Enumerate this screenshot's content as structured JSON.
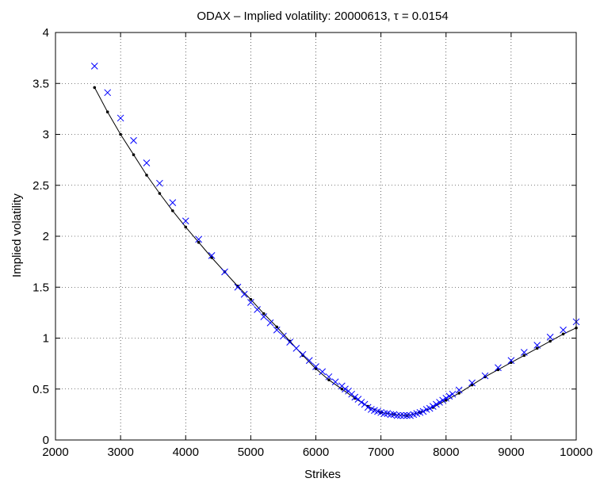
{
  "chart_data": {
    "type": "scatter",
    "title": "ODAX – Implied volatility: 20000613,  τ = 0.0154",
    "xlabel": "Strikes",
    "ylabel": "Implied volatility",
    "xlim": [
      2000,
      10000
    ],
    "ylim": [
      0,
      4
    ],
    "grid": true,
    "xticks": [
      "2000",
      "3000",
      "4000",
      "5000",
      "6000",
      "7000",
      "8000",
      "9000",
      "10000"
    ],
    "yticks": [
      "0",
      "0.5",
      "1",
      "1.5",
      "2",
      "2.5",
      "3",
      "3.5",
      "4"
    ],
    "series": [
      {
        "marker": "x",
        "color": "#0000ff",
        "x": [
          2600,
          2800,
          3000,
          3200,
          3400,
          3600,
          3800,
          4000,
          4200,
          4400,
          4600,
          4800,
          4900,
          5000,
          5100,
          5200,
          5300,
          5400,
          5500,
          5600,
          5700,
          5800,
          5900,
          6000,
          6100,
          6200,
          6300,
          6400,
          6450,
          6500,
          6550,
          6600,
          6650,
          6700,
          6750,
          6800,
          6850,
          6900,
          6950,
          7000,
          7050,
          7100,
          7150,
          7200,
          7250,
          7300,
          7350,
          7400,
          7450,
          7500,
          7550,
          7600,
          7650,
          7700,
          7750,
          7800,
          7850,
          7900,
          7950,
          8000,
          8050,
          8100,
          8200,
          8400,
          8600,
          8800,
          9000,
          9200,
          9400,
          9600,
          9800,
          10000
        ],
        "y": [
          3.67,
          3.41,
          3.16,
          2.94,
          2.72,
          2.52,
          2.33,
          2.15,
          1.97,
          1.81,
          1.65,
          1.5,
          1.43,
          1.35,
          1.28,
          1.21,
          1.15,
          1.08,
          1.02,
          0.96,
          0.9,
          0.84,
          0.78,
          0.72,
          0.67,
          0.62,
          0.57,
          0.53,
          0.5,
          0.48,
          0.45,
          0.42,
          0.4,
          0.37,
          0.35,
          0.32,
          0.3,
          0.29,
          0.28,
          0.27,
          0.26,
          0.26,
          0.25,
          0.25,
          0.24,
          0.24,
          0.24,
          0.24,
          0.24,
          0.25,
          0.26,
          0.27,
          0.28,
          0.3,
          0.31,
          0.33,
          0.35,
          0.37,
          0.39,
          0.41,
          0.43,
          0.45,
          0.49,
          0.56,
          0.63,
          0.71,
          0.78,
          0.86,
          0.93,
          1.01,
          1.08,
          1.16
        ]
      },
      {
        "marker": "line-dot",
        "color": "#000000",
        "x": [
          2600,
          2800,
          3000,
          3200,
          3400,
          3600,
          3800,
          4000,
          4200,
          4400,
          4600,
          4800,
          5000,
          5200,
          5400,
          5600,
          5800,
          6000,
          6200,
          6400,
          6600,
          6800,
          7000,
          7200,
          7400,
          7600,
          7800,
          8000,
          8200,
          8400,
          8600,
          8800,
          9000,
          9200,
          9400,
          9600,
          9800,
          10000
        ],
        "y": [
          3.46,
          3.22,
          3.0,
          2.8,
          2.6,
          2.42,
          2.25,
          2.09,
          1.94,
          1.79,
          1.65,
          1.51,
          1.38,
          1.24,
          1.11,
          0.97,
          0.83,
          0.7,
          0.59,
          0.5,
          0.41,
          0.33,
          0.27,
          0.25,
          0.24,
          0.27,
          0.32,
          0.39,
          0.46,
          0.54,
          0.62,
          0.69,
          0.76,
          0.83,
          0.9,
          0.97,
          1.04,
          1.1
        ]
      }
    ]
  }
}
